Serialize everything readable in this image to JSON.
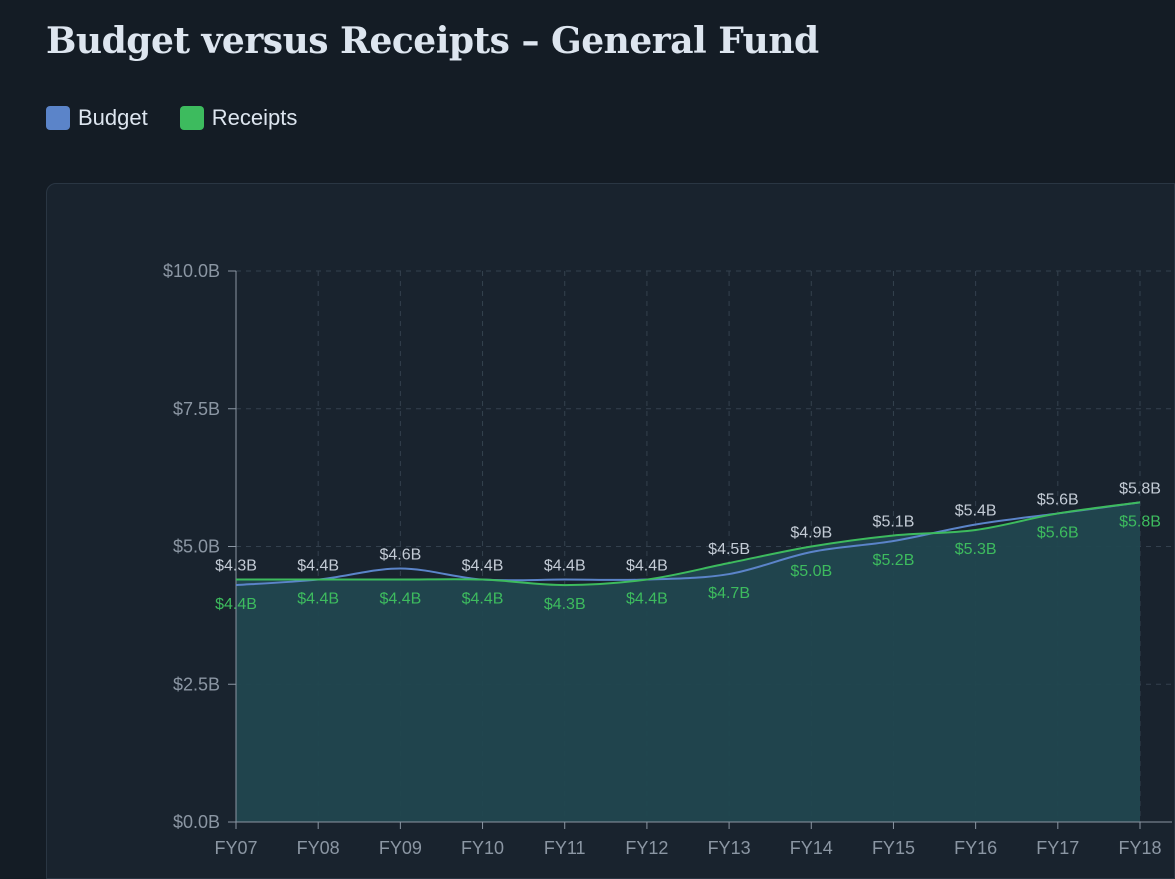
{
  "title": "Budget versus Receipts – General Fund",
  "legend": [
    {
      "label": "Budget",
      "color": "#5b84c9"
    },
    {
      "label": "Receipts",
      "color": "#3dbb5e"
    }
  ],
  "chart_data": {
    "type": "line",
    "title": "Budget versus Receipts – General Fund",
    "categories": [
      "FY07",
      "FY08",
      "FY09",
      "FY10",
      "FY11",
      "FY12",
      "FY13",
      "FY14",
      "FY15",
      "FY16",
      "FY17",
      "FY18"
    ],
    "series": [
      {
        "name": "Budget",
        "color": "#5b84c9",
        "values": [
          4.3,
          4.4,
          4.6,
          4.4,
          4.4,
          4.4,
          4.5,
          4.9,
          5.1,
          5.4,
          5.6,
          5.8
        ]
      },
      {
        "name": "Receipts",
        "color": "#3dbb5e",
        "values": [
          4.4,
          4.4,
          4.4,
          4.4,
          4.3,
          4.4,
          4.7,
          5.0,
          5.2,
          5.3,
          5.6,
          5.8
        ]
      }
    ],
    "ylim": [
      0,
      10
    ],
    "yticks": [
      0,
      2.5,
      5,
      7.5,
      10
    ],
    "ytick_labels": [
      "$0.0B",
      "$2.5B",
      "$5.0B",
      "$7.5B",
      "$10.0B"
    ],
    "unit_prefix": "$",
    "unit_suffix": "B",
    "grid": true,
    "area_fill": "#21474f",
    "legend_position": "top-left"
  }
}
